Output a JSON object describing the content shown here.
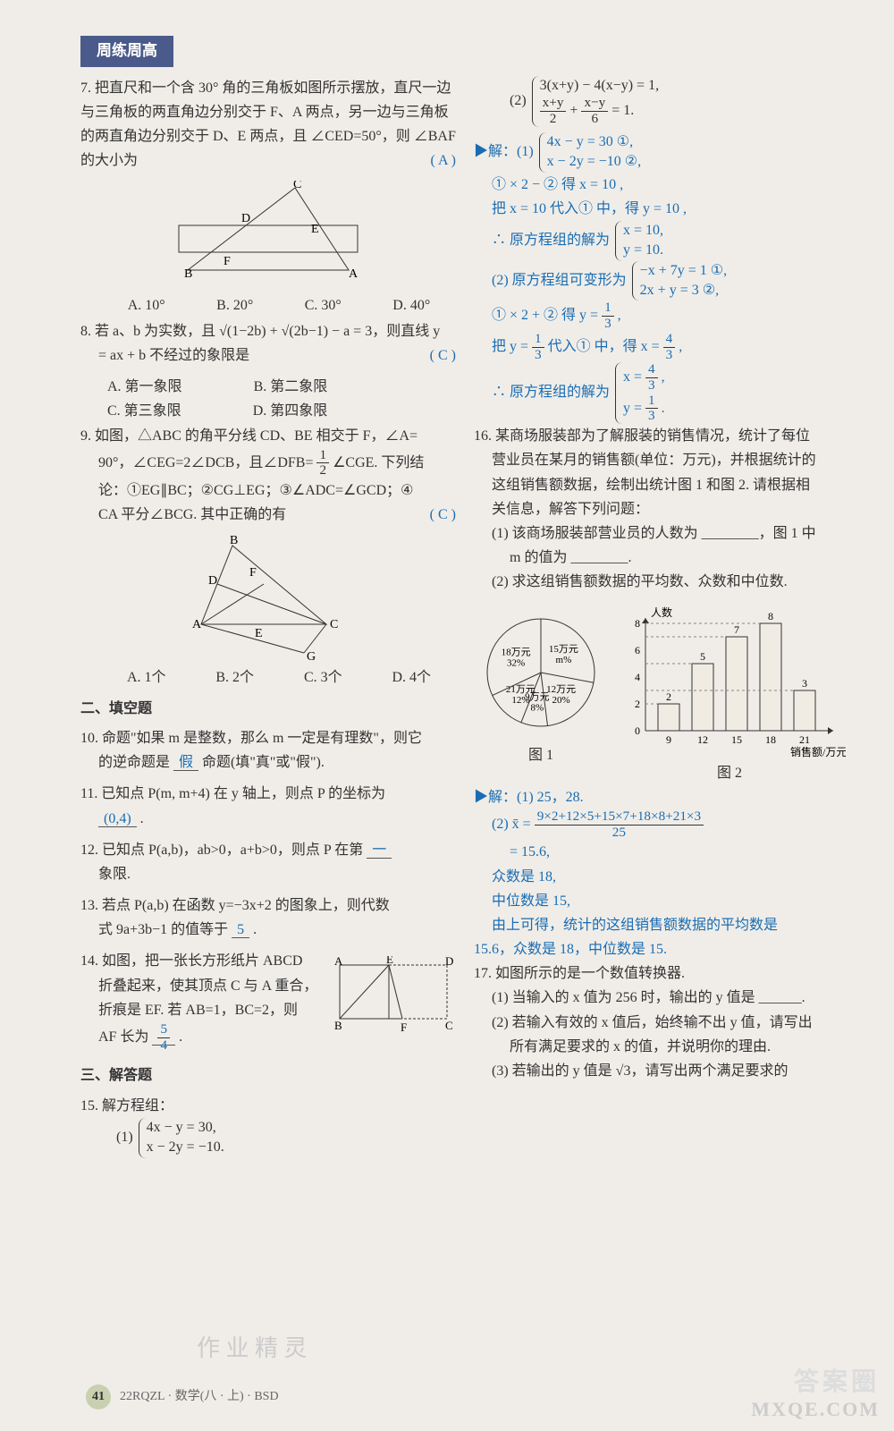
{
  "header": {
    "badge": "周练周高"
  },
  "left": {
    "q7": {
      "text": "7. 把直尺和一个含 30° 角的三角板如图所示摆放，直尺一边与三角板的两直角边分别交于 F、A 两点，另一边与三角板的两直角边分别交于 D、E 两点，且 ∠CED=50°，则 ∠BAF 的大小为",
      "ans": "( A )",
      "opts": [
        "A. 10°",
        "B. 20°",
        "C. 30°",
        "D. 40°"
      ]
    },
    "q8": {
      "text1": "8. 若 a、b 为实数，且 √(1−2b) + √(2b−1) − a = 3，则直线 y",
      "text2": "= ax + b 不经过的象限是",
      "ans": "( C )",
      "opts": [
        "A. 第一象限",
        "B. 第二象限",
        "C. 第三象限",
        "D. 第四象限"
      ]
    },
    "q9": {
      "line1": "9. 如图，△ABC 的角平分线 CD、BE 相交于 F，∠A=",
      "line2_a": "90°，∠CEG=2∠DCB，且∠DFB=",
      "line2_b": "∠CGE. 下列结",
      "line3": "论：①EG∥BC；②CG⊥EG；③∠ADC=∠GCD；④",
      "line4": "CA 平分∠BCG. 其中正确的有",
      "ans": "( C )",
      "opts": [
        "A. 1个",
        "B. 2个",
        "C. 3个",
        "D. 4个"
      ]
    },
    "sec2": "二、填空题",
    "q10": {
      "a": "10. 命题\"如果 m 是整数，那么 m 一定是有理数\"，则它",
      "b": "的逆命题是",
      "blank": "假",
      "c": "命题(填\"真\"或\"假\")."
    },
    "q11": {
      "a": "11. 已知点 P(m, m+4) 在 y 轴上，则点 P 的坐标为",
      "blank": "(0,4)",
      "dot": "."
    },
    "q12": {
      "a": "12. 已知点 P(a,b)，ab>0，a+b>0，则点 P 在第",
      "blank": "一",
      "b": "象限."
    },
    "q13": {
      "a": "13. 若点 P(a,b) 在函数 y=−3x+2 的图象上，则代数",
      "b": "式 9a+3b−1 的值等于",
      "blank": "5",
      "dot": "."
    },
    "q14": {
      "a": "14. 如图，把一张长方形纸片 ABCD",
      "b": "折叠起来，使其顶点 C 与 A 重合，",
      "c": "折痕是 EF. 若 AB=1，BC=2，则",
      "d": "AF 长为",
      "blank_n": "5",
      "blank_d": "4",
      "dot": "."
    },
    "sec3": "三、解答题",
    "q15": {
      "head": "15. 解方程组：",
      "p1": "(1)",
      "s1a": "4x − y = 30,",
      "s1b": "x − 2y = −10."
    }
  },
  "right": {
    "q15_2": {
      "p2": "(2)",
      "s2a": "3(x+y) − 4(x−y) = 1,",
      "s2b_n1": "x+y",
      "s2b_d1": "2",
      "s2b_n2": "x−y",
      "s2b_d2": "6",
      "s2b_rest": "= 1."
    },
    "sol": {
      "head": "▶解：(1)",
      "s1a": "4x − y = 30 ①,",
      "s1b": "x − 2y = −10 ②,",
      "l2": "① × 2 − ② 得 x = 10 ,",
      "l3": "把 x = 10 代入① 中，得 y = 10 ,",
      "l4a": "∴ 原方程组的解为",
      "l4s1": "x = 10,",
      "l4s2": "y = 10.",
      "p2a": "(2) 原方程组可变形为",
      "p2s1": "−x + 7y = 1 ①,",
      "p2s2": "2x + y = 3 ②,",
      "l5a": "① × 2 + ② 得 y = ",
      "l5n": "1",
      "l5d": "3",
      "l5b": " ,",
      "l6a": "把 y = ",
      "l6n1": "1",
      "l6d1": "3",
      "l6b": " 代入① 中，得 x = ",
      "l6n2": "4",
      "l6d2": "3",
      "l6c": " ,",
      "l7a": "∴ 原方程组的解为",
      "l7s1n": "4",
      "l7s1d": "3",
      "l7s2n": "1",
      "l7s2d": "3"
    },
    "q16": {
      "l1": "16. 某商场服装部为了解服装的销售情况，统计了每位",
      "l2": "营业员在某月的销售额(单位：万元)，并根据统计的",
      "l3": "这组销售额数据，绘制出统计图 1 和图 2. 请根据相",
      "l4": "关信息，解答下列问题：",
      "l5": "(1) 该商场服装部营业员的人数为 ________，图 1 中",
      "l6": "m 的值为 ________.",
      "l7": "(2) 求这组销售额数据的平均数、众数和中位数.",
      "pie": {
        "slices": [
          {
            "label": "15万元",
            "sub": "m%",
            "color": "#f5f0e8"
          },
          {
            "label": "12万元",
            "sub": "20%",
            "color": "#f5f0e8"
          },
          {
            "label": "9万元",
            "sub": "8%",
            "color": "#e0dace"
          },
          {
            "label": "21万元",
            "sub": "12%",
            "color": "#f5f0e8"
          },
          {
            "label": "18万元",
            "sub": "32%",
            "color": "#f5f0e8"
          }
        ],
        "caption": "图 1"
      },
      "bar": {
        "caption": "图 2",
        "ylabel": "人数",
        "xlabel": "销售额/万元",
        "yticks": [
          0,
          2,
          4,
          6,
          8
        ],
        "bars": [
          {
            "x": "9",
            "v": 2
          },
          {
            "x": "12",
            "v": 5
          },
          {
            "x": "15",
            "v": 7
          },
          {
            "x": "18",
            "v": 8
          },
          {
            "x": "21",
            "v": 3
          }
        ],
        "bar_color": "#f0ece4",
        "axis_color": "#333"
      },
      "sol_head": "▶解：(1) 25，28.",
      "sol2a": "(2) x̄ = ",
      "sol2n": "9×2+12×5+15×7+18×8+21×3",
      "sol2d": "25",
      "sol3": "= 15.6,",
      "sol4": "众数是 18,",
      "sol5": "中位数是 15,",
      "sol6": "由上可得，统计的这组销售额数据的平均数是",
      "sol7": "15.6，众数是 18，中位数是 15."
    },
    "q17": {
      "l1": "17. 如图所示的是一个数值转换器.",
      "l2": "(1) 当输入的 x 值为 256 时，输出的 y 值是 ______.",
      "l3": "(2) 若输入有效的 x 值后，始终输不出 y 值，请写出",
      "l4": "所有满足要求的 x 的值，并说明你的理由.",
      "l5": "(3) 若输出的 y 值是 √3，请写出两个满足要求的"
    }
  },
  "footer": {
    "page": "41",
    "code": "22RQZL · 数学(八 · 上) · BSD"
  },
  "watermark": {
    "a": "答案圈",
    "b": "MXQE.COM"
  }
}
